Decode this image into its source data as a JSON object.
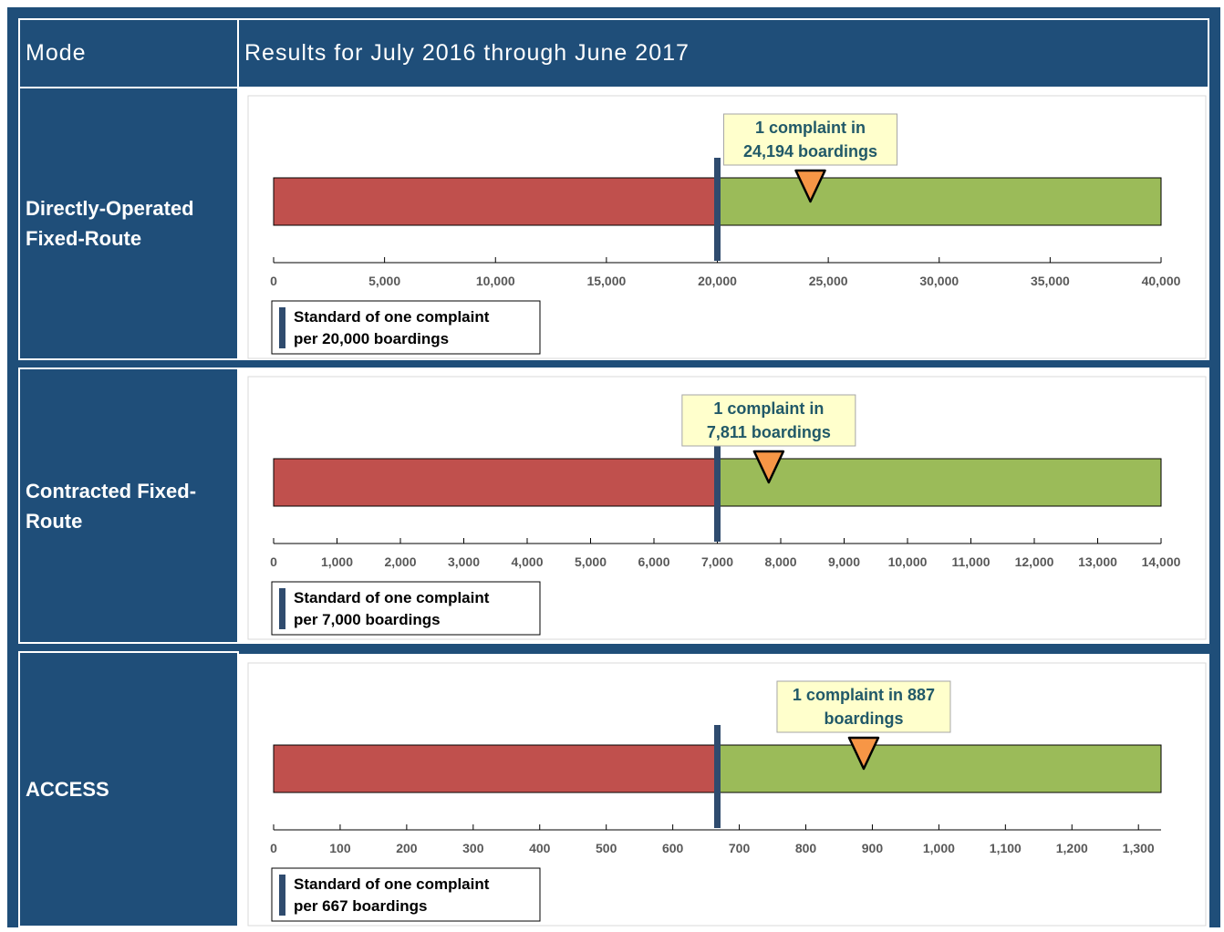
{
  "table": {
    "header": [
      "Mode",
      "Results for July 2016 through June 2017"
    ],
    "rows": [
      "Directly-Operated Fixed-Route",
      "Contracted Fixed-Route",
      "ACCESS"
    ]
  },
  "chart_data": [
    {
      "type": "bullet",
      "value": 24194,
      "standard": 20000,
      "xlim": [
        0,
        40000
      ],
      "xticks": [
        0,
        {
          "value": 5000,
          "label": "5,000"
        },
        {
          "value": 10000,
          "label": "10,000"
        },
        {
          "value": 15000,
          "label": "15,000"
        },
        {
          "value": 20000,
          "label": "20,000"
        },
        {
          "value": 25000,
          "label": "25,000"
        },
        {
          "value": 30000,
          "label": "30,000"
        },
        {
          "value": 35000,
          "label": "35,000"
        },
        {
          "value": 40000,
          "label": "40,000"
        }
      ],
      "annotation": [
        "1 complaint in",
        "24,194 boardings"
      ],
      "legend": [
        "Standard of one complaint",
        "per 20,000 boardings"
      ],
      "colors": {
        "below": "#c0504d",
        "above": "#9bbb59",
        "marker": "#f79646",
        "standard": "#2f4b6e"
      }
    },
    {
      "type": "bullet",
      "value": 7811,
      "standard": 7000,
      "xlim": [
        0,
        14000
      ],
      "xticks": [
        0,
        {
          "value": 1000,
          "label": "1,000"
        },
        {
          "value": 2000,
          "label": "2,000"
        },
        {
          "value": 3000,
          "label": "3,000"
        },
        {
          "value": 4000,
          "label": "4,000"
        },
        {
          "value": 5000,
          "label": "5,000"
        },
        {
          "value": 6000,
          "label": "6,000"
        },
        {
          "value": 7000,
          "label": "7,000"
        },
        {
          "value": 8000,
          "label": "8,000"
        },
        {
          "value": 9000,
          "label": "9,000"
        },
        {
          "value": 10000,
          "label": "10,000"
        },
        {
          "value": 11000,
          "label": "11,000"
        },
        {
          "value": 12000,
          "label": "12,000"
        },
        {
          "value": 13000,
          "label": "13,000"
        },
        {
          "value": 14000,
          "label": "14,000"
        }
      ],
      "annotation": [
        "1 complaint in",
        "7,811 boardings"
      ],
      "legend": [
        "Standard of one complaint",
        "per 7,000 boardings"
      ],
      "colors": {
        "below": "#c0504d",
        "above": "#9bbb59",
        "marker": "#f79646",
        "standard": "#2f4b6e"
      }
    },
    {
      "type": "bullet",
      "value": 887,
      "standard": 667,
      "xlim": [
        0,
        1334
      ],
      "xticks": [
        0,
        100,
        200,
        300,
        400,
        500,
        600,
        700,
        800,
        900,
        {
          "value": 1000,
          "label": "1,000"
        },
        {
          "value": 1100,
          "label": "1,100"
        },
        {
          "value": 1200,
          "label": "1,200"
        },
        {
          "value": 1300,
          "label": "1,300"
        }
      ],
      "annotation": [
        "1 complaint in 887",
        "boardings"
      ],
      "legend": [
        "Standard of one complaint",
        "per 667 boardings"
      ],
      "colors": {
        "below": "#c0504d",
        "above": "#9bbb59",
        "marker": "#f79646",
        "standard": "#2f4b6e"
      }
    }
  ]
}
